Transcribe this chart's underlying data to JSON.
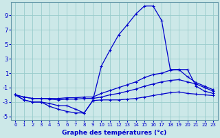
{
  "title": "Graphe des températures (°c)",
  "bg_color": "#cce8e8",
  "grid_color": "#99cccc",
  "line_color": "#0000cc",
  "x_hours": [
    0,
    1,
    2,
    3,
    4,
    5,
    6,
    7,
    8,
    9,
    10,
    11,
    12,
    13,
    14,
    15,
    16,
    17,
    18,
    19,
    20,
    21,
    22,
    23
  ],
  "curve_top": [
    -2.0,
    -2.7,
    -3.0,
    -3.0,
    -3.2,
    -3.5,
    -3.5,
    -4.0,
    -4.5,
    -2.8,
    2.0,
    4.2,
    6.3,
    7.7,
    9.2,
    10.3,
    10.3,
    8.3,
    1.5,
    1.5,
    1.5,
    -0.8,
    -1.5,
    -1.8
  ],
  "curve_mid1": [
    -2.0,
    -2.3,
    -2.5,
    -2.5,
    -2.5,
    -2.5,
    -2.4,
    -2.4,
    -2.3,
    -2.3,
    -1.8,
    -1.4,
    -1.0,
    -0.6,
    -0.2,
    0.4,
    0.8,
    1.0,
    1.4,
    1.5,
    0.5,
    -0.3,
    -0.8,
    -1.3
  ],
  "curve_mid2": [
    -2.0,
    -2.3,
    -2.5,
    -2.5,
    -2.6,
    -2.7,
    -2.6,
    -2.6,
    -2.5,
    -2.5,
    -2.3,
    -2.0,
    -1.8,
    -1.5,
    -1.2,
    -0.8,
    -0.5,
    -0.2,
    0.0,
    0.1,
    -0.2,
    -0.5,
    -1.0,
    -1.5
  ],
  "curve_bot": [
    -2.0,
    -2.7,
    -3.0,
    -3.0,
    -3.6,
    -4.0,
    -4.3,
    -4.5,
    -4.5,
    -2.8,
    -2.7,
    -2.7,
    -2.7,
    -2.6,
    -2.5,
    -2.3,
    -2.1,
    -1.9,
    -1.7,
    -1.6,
    -1.8,
    -1.9,
    -2.0,
    -2.1
  ],
  "ylim": [
    -5.5,
    10.8
  ],
  "yticks": [
    -5,
    -3,
    -1,
    1,
    3,
    5,
    7,
    9
  ]
}
